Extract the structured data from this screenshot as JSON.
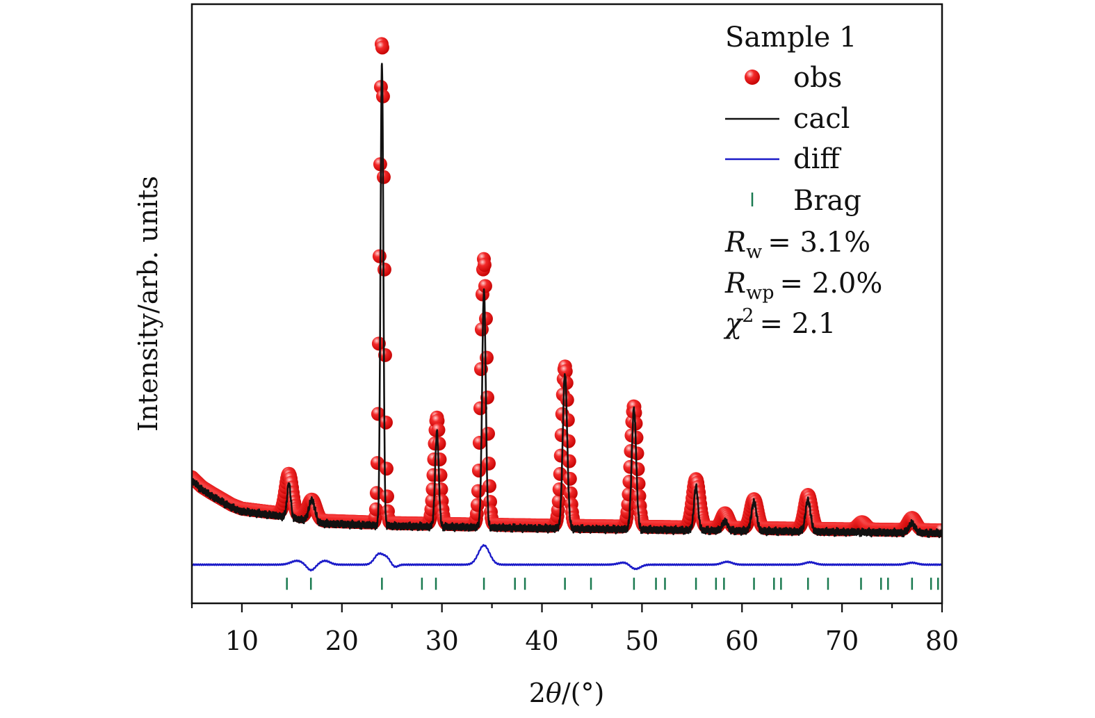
{
  "chart_data": {
    "type": "line",
    "title": "",
    "xlabel": "2θ/(°)",
    "ylabel": "Intensity/arb. units",
    "xlim": [
      5,
      80
    ],
    "ylim": [
      -0.14,
      1.1
    ],
    "xticks": [
      10,
      20,
      30,
      40,
      50,
      60,
      70,
      80
    ],
    "grid": false,
    "legend": {
      "position": "top-right",
      "title": "Sample 1",
      "entries": [
        {
          "name": "obs",
          "marker": "circle",
          "color": "#e01010"
        },
        {
          "name": "cacl",
          "marker": "line",
          "color": "#111111"
        },
        {
          "name": "diff",
          "marker": "line",
          "color": "#1a1ac8"
        },
        {
          "name": "Brag",
          "marker": "tick",
          "color": "#1a7a50"
        }
      ]
    },
    "annotations": {
      "rw_symbol": "R",
      "rw_sub": "w",
      "rw_value": "= 3.1%",
      "rwp_symbol": "R",
      "rwp_sub": "wp",
      "rwp_value": "= 2.0%",
      "chi_symbol": "χ",
      "chi_sup": "2",
      "chi_value": "= 2.1"
    },
    "background": {
      "points": [
        [
          5,
          0.115
        ],
        [
          6,
          0.095
        ],
        [
          7,
          0.082
        ],
        [
          8,
          0.07
        ],
        [
          9,
          0.058
        ],
        [
          10,
          0.05
        ],
        [
          12,
          0.045
        ],
        [
          14,
          0.04
        ],
        [
          18,
          0.025
        ],
        [
          25,
          0.02
        ],
        [
          40,
          0.015
        ],
        [
          60,
          0.01
        ],
        [
          80,
          0.005
        ]
      ]
    },
    "calc_peaks": [
      {
        "center": 14.7,
        "height": 0.07,
        "width": 0.18
      },
      {
        "center": 17.0,
        "height": 0.045,
        "width": 0.3
      },
      {
        "center": 24.0,
        "height": 0.96,
        "width": 0.14
      },
      {
        "center": 29.5,
        "height": 0.195,
        "width": 0.18
      },
      {
        "center": 34.2,
        "height": 0.49,
        "width": 0.18
      },
      {
        "center": 42.3,
        "height": 0.32,
        "width": 0.22
      },
      {
        "center": 49.2,
        "height": 0.25,
        "width": 0.22
      },
      {
        "center": 55.4,
        "height": 0.09,
        "width": 0.2
      },
      {
        "center": 58.3,
        "height": 0.02,
        "width": 0.25
      },
      {
        "center": 61.2,
        "height": 0.06,
        "width": 0.25
      },
      {
        "center": 66.6,
        "height": 0.065,
        "width": 0.25
      },
      {
        "center": 77.0,
        "height": 0.02,
        "width": 0.3
      }
    ],
    "obs_peaks": [
      {
        "center": 14.7,
        "height": 0.085,
        "width": 0.35
      },
      {
        "center": 17.0,
        "height": 0.04,
        "width": 0.4
      },
      {
        "center": 24.0,
        "height": 1.0,
        "width": 0.22
      },
      {
        "center": 29.5,
        "height": 0.22,
        "width": 0.28
      },
      {
        "center": 34.2,
        "height": 0.55,
        "width": 0.28
      },
      {
        "center": 42.3,
        "height": 0.33,
        "width": 0.32
      },
      {
        "center": 49.2,
        "height": 0.25,
        "width": 0.32
      },
      {
        "center": 55.4,
        "height": 0.1,
        "width": 0.35
      },
      {
        "center": 58.3,
        "height": 0.03,
        "width": 0.35
      },
      {
        "center": 61.2,
        "height": 0.06,
        "width": 0.35
      },
      {
        "center": 66.6,
        "height": 0.07,
        "width": 0.35
      },
      {
        "center": 72.0,
        "height": 0.015,
        "width": 0.4
      },
      {
        "center": 77.0,
        "height": 0.025,
        "width": 0.4
      }
    ],
    "diff": {
      "offset": -0.06,
      "features": [
        {
          "center": 15.5,
          "height": 0.008,
          "width": 0.6
        },
        {
          "center": 16.9,
          "height": -0.012,
          "width": 0.4
        },
        {
          "center": 18.3,
          "height": 0.008,
          "width": 0.5
        },
        {
          "center": 23.7,
          "height": 0.022,
          "width": 0.45
        },
        {
          "center": 24.5,
          "height": 0.012,
          "width": 0.35
        },
        {
          "center": 25.3,
          "height": -0.005,
          "width": 0.3
        },
        {
          "center": 34.2,
          "height": 0.04,
          "width": 0.55
        },
        {
          "center": 48.3,
          "height": 0.005,
          "width": 0.6
        },
        {
          "center": 49.3,
          "height": -0.01,
          "width": 0.5
        },
        {
          "center": 58.5,
          "height": 0.006,
          "width": 0.5
        },
        {
          "center": 66.8,
          "height": 0.005,
          "width": 0.5
        },
        {
          "center": 77.0,
          "height": 0.004,
          "width": 0.5
        }
      ]
    },
    "bragg": {
      "y_top": -0.087,
      "y_bottom": -0.112,
      "positions": [
        14.5,
        16.9,
        24.0,
        28.0,
        29.4,
        34.2,
        37.3,
        38.3,
        42.3,
        44.9,
        49.2,
        51.4,
        52.3,
        55.4,
        57.4,
        58.2,
        61.2,
        63.2,
        63.9,
        66.6,
        68.6,
        71.9,
        73.9,
        74.6,
        77.0,
        78.9,
        79.6
      ]
    }
  }
}
